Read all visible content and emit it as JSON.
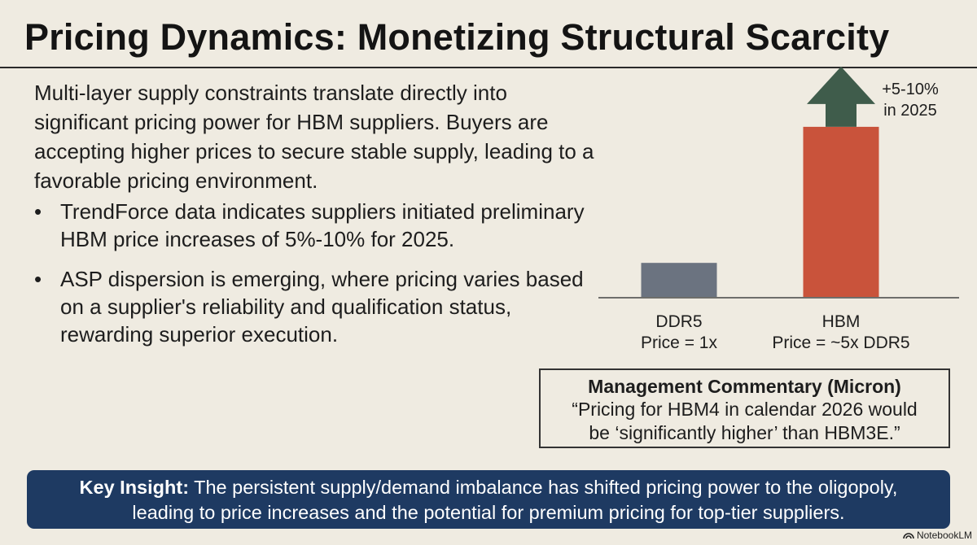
{
  "title": "Pricing Dynamics: Monetizing Structural Scarcity",
  "intro": "Multi-layer supply constraints translate directly into significant pricing power for HBM suppliers. Buyers are accepting higher prices to secure stable supply, leading to a favorable pricing environment.",
  "bullets": [
    "TrendForce data indicates suppliers initiated preliminary HBM price increases of 5%-10% for 2025.",
    "ASP dispersion is emerging, where pricing varies based on a supplier's reliability and qualification status, rewarding superior execution."
  ],
  "bullet_glyph": "•",
  "chart_data": {
    "type": "bar",
    "categories": [
      "DDR5",
      "HBM"
    ],
    "category_sublabels": [
      "Price = 1x",
      "Price = ~5x DDR5"
    ],
    "values": [
      1,
      5
    ],
    "colors": [
      "#6b7380",
      "#c9533b"
    ],
    "annotation": {
      "lines": [
        "+5-10%",
        "in 2025"
      ],
      "arrow_color": "#3f5c4b",
      "target": "HBM"
    },
    "ylim": [
      0,
      5.5
    ]
  },
  "commentary": {
    "title": "Management Commentary (Micron)",
    "quote_line1": "“Pricing for HBM4 in calendar 2026 would",
    "quote_line2": "be ‘significantly higher’ than HBM3E.”"
  },
  "insight": {
    "label": "Key Insight:",
    "text_line1": " The persistent supply/demand imbalance has shifted pricing power to the oligopoly,",
    "text_line2": "leading to price increases and the potential for premium pricing for top-tier suppliers."
  },
  "branding": {
    "name": "NotebookLM",
    "icon": "notebooklm-icon"
  },
  "colors": {
    "background": "#efebe1",
    "insight_bg": "#1e3a62",
    "ddr5": "#6b7380",
    "hbm": "#c9533b",
    "arrow": "#3f5c4b"
  }
}
